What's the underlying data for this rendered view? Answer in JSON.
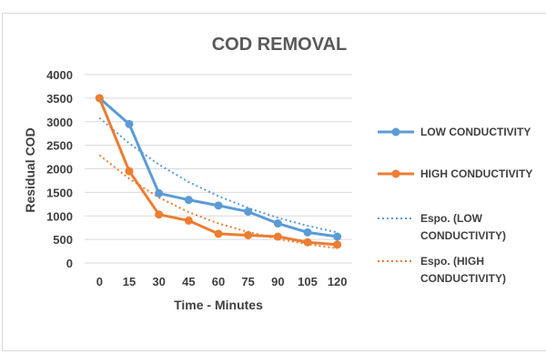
{
  "chart_data": {
    "type": "line",
    "title": "COD REMOVAL",
    "xlabel": "Time - Minutes",
    "ylabel": "Residual COD",
    "categories": [
      "0",
      "15",
      "30",
      "45",
      "60",
      "75",
      "90",
      "105",
      "120"
    ],
    "ylim": [
      0,
      4000
    ],
    "yticks": [
      "0",
      "500",
      "1000",
      "1500",
      "2000",
      "2500",
      "3000",
      "3500",
      "4000"
    ],
    "grid": true,
    "legend_position": "right",
    "series": [
      {
        "name": "LOW CONDUCTIVITY",
        "color": "#5b9bd5",
        "values": [
          3500,
          2950,
          1480,
          1340,
          1220,
          1090,
          840,
          650,
          560
        ]
      },
      {
        "name": "HIGH CONDUCTIVITY",
        "color": "#ed7d31",
        "values": [
          3500,
          1950,
          1030,
          900,
          620,
          590,
          560,
          440,
          390
        ]
      }
    ],
    "trendlines": [
      {
        "name": "Espo. (LOW CONDUCTIVITY)",
        "color": "#5b9bd5",
        "values": [
          3080,
          2540,
          2090,
          1720,
          1420,
          1170,
          960,
          790,
          650
        ]
      },
      {
        "name": "Espo. (HIGH CONDUCTIVITY)",
        "color": "#ed7d31",
        "values": [
          2290,
          1790,
          1390,
          1080,
          840,
          660,
          510,
          400,
          310
        ]
      }
    ],
    "legend": [
      {
        "lines": [
          "LOW CONDUCTIVITY"
        ],
        "color": "#5b9bd5",
        "style": "solid-marker"
      },
      {
        "lines": [
          "HIGH CONDUCTIVITY"
        ],
        "color": "#ed7d31",
        "style": "solid-marker"
      },
      {
        "lines": [
          "Espo. (LOW",
          "CONDUCTIVITY)"
        ],
        "color": "#5b9bd5",
        "style": "dotted"
      },
      {
        "lines": [
          "Espo. (HIGH",
          "CONDUCTIVITY)"
        ],
        "color": "#ed7d31",
        "style": "dotted"
      }
    ]
  }
}
